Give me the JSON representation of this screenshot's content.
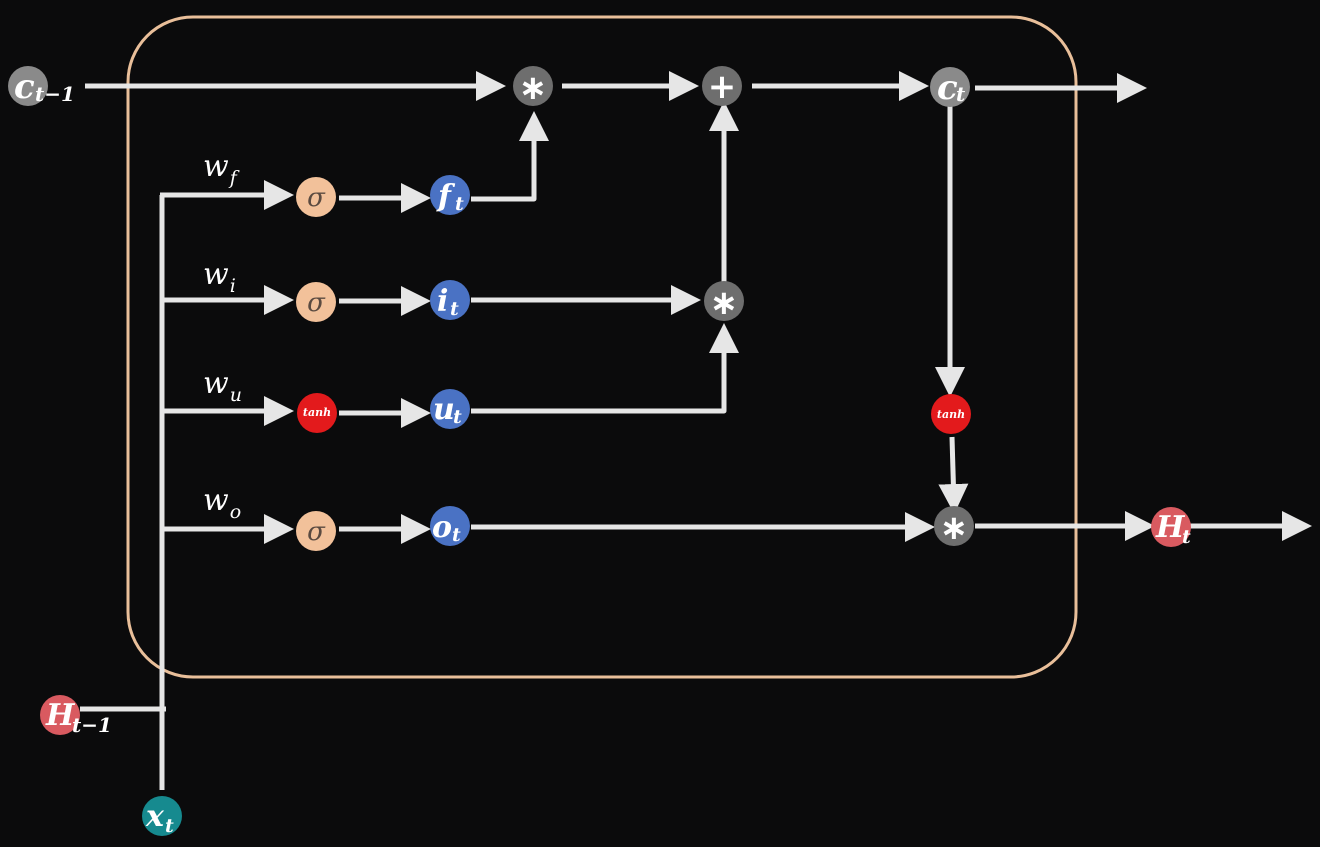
{
  "colors": {
    "background": "#0b0b0c",
    "cell_border": "#e9bf9a",
    "arrow": "#e6e6e6",
    "state_gray": "#8a8a8a",
    "op_gray": "#6e6e6e",
    "gate_blue": "#4a72c4",
    "sigmoid_peach": "#f2c19a",
    "tanh_red": "#e31a1c",
    "hidden_red": "#d95a60",
    "input_teal": "#168a8f"
  },
  "weights": {
    "w_f": {
      "base": "w",
      "sub": "f"
    },
    "w_i": {
      "base": "w",
      "sub": "i"
    },
    "w_u": {
      "base": "w",
      "sub": "u"
    },
    "w_o": {
      "base": "w",
      "sub": "o"
    }
  },
  "nodes": {
    "c_prev": {
      "base": "c",
      "sub": "t−1"
    },
    "c_t": {
      "base": "c",
      "sub": "t"
    },
    "h_prev": {
      "base": "H",
      "sub": "t−1"
    },
    "h_t": {
      "base": "H",
      "sub": "t"
    },
    "x_t": {
      "base": "x",
      "sub": "t"
    },
    "f_t": {
      "base": "f",
      "sub": "t"
    },
    "i_t": {
      "base": "i",
      "sub": "t"
    },
    "u_t": {
      "base": "u",
      "sub": "t"
    },
    "o_t": {
      "base": "o",
      "sub": "t"
    },
    "sigma_f": {
      "symbol": "σ"
    },
    "sigma_i": {
      "symbol": "σ"
    },
    "sigma_o": {
      "symbol": "σ"
    },
    "tanh_u": {
      "symbol": "tanh"
    },
    "tanh_c": {
      "symbol": "tanh"
    },
    "mult_forget": {
      "symbol": "∗"
    },
    "mult_input": {
      "symbol": "∗"
    },
    "mult_output": {
      "symbol": "∗"
    },
    "add_cell": {
      "symbol": "+"
    }
  }
}
